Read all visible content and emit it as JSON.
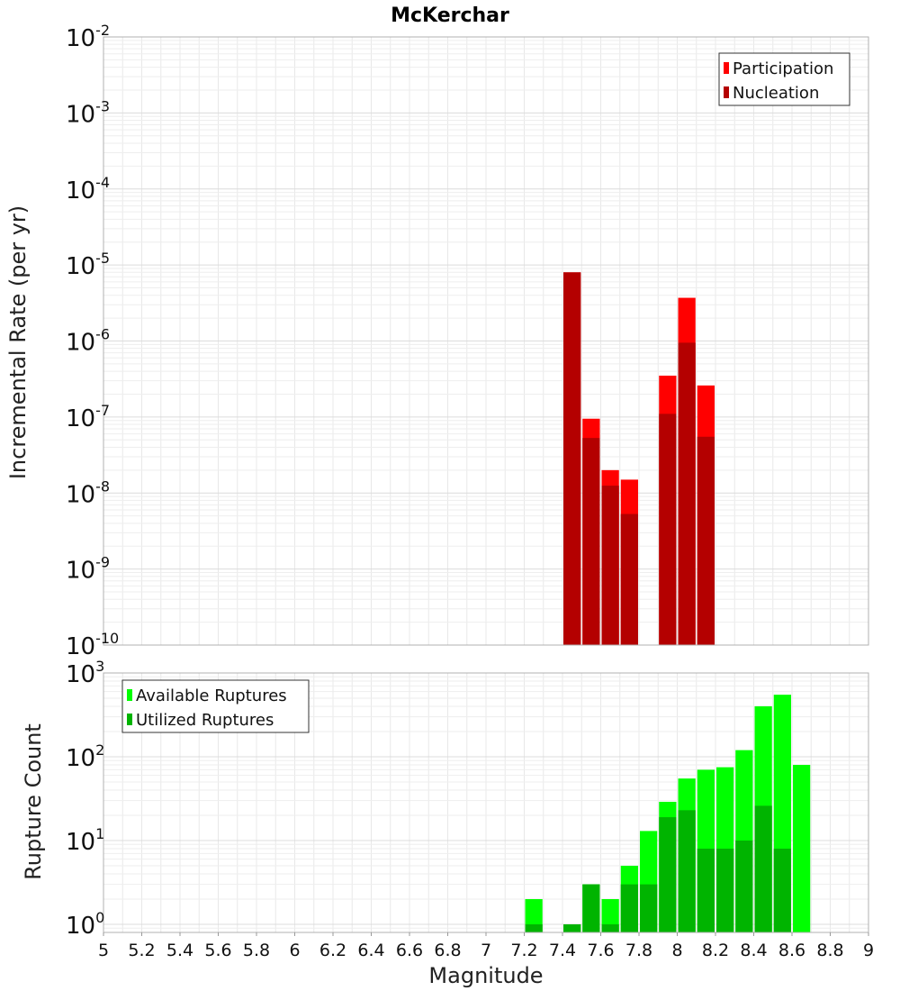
{
  "title": "McKerchar",
  "chart_data": [
    {
      "type": "bar",
      "ylabel": "Incremental Rate (per yr)",
      "yscale": "log",
      "ylim": [
        1e-10,
        0.01
      ],
      "xlim": [
        5,
        9
      ],
      "y_ticks": [
        {
          "base": "10",
          "exp": "-10"
        },
        {
          "base": "10",
          "exp": "-9"
        },
        {
          "base": "10",
          "exp": "-8"
        },
        {
          "base": "10",
          "exp": "-7"
        },
        {
          "base": "10",
          "exp": "-6"
        },
        {
          "base": "10",
          "exp": "-5"
        },
        {
          "base": "10",
          "exp": "-4"
        },
        {
          "base": "10",
          "exp": "-3"
        },
        {
          "base": "10",
          "exp": "-2"
        }
      ],
      "legend_position": "top-right",
      "grid": true,
      "bin_width": 0.1,
      "series": [
        {
          "name": "Participation",
          "color": "#ff0000",
          "x": [
            7.45,
            7.55,
            7.65,
            7.75,
            7.95,
            8.05,
            8.15
          ],
          "values": [
            8e-06,
            9.5e-08,
            2e-08,
            1.5e-08,
            3.5e-07,
            3.7e-06,
            2.6e-07
          ]
        },
        {
          "name": "Nucleation",
          "color": "#b40000",
          "x": [
            7.45,
            7.55,
            7.65,
            7.75,
            7.95,
            8.05,
            8.15
          ],
          "values": [
            8e-06,
            5.3e-08,
            1.25e-08,
            5.3e-09,
            1.1e-07,
            9.5e-07,
            5.5e-08
          ]
        }
      ]
    },
    {
      "type": "bar",
      "xlabel": "Magnitude",
      "ylabel": "Rupture Count",
      "yscale": "log",
      "ylim": [
        0.8,
        1000
      ],
      "xlim": [
        5,
        9
      ],
      "y_ticks": [
        {
          "base": "10",
          "exp": "0"
        },
        {
          "base": "10",
          "exp": "1"
        },
        {
          "base": "10",
          "exp": "2"
        },
        {
          "base": "10",
          "exp": "3"
        }
      ],
      "x_ticks": [
        "5",
        "5.2",
        "5.4",
        "5.6",
        "5.8",
        "6",
        "6.2",
        "6.4",
        "6.6",
        "6.8",
        "7",
        "7.2",
        "7.4",
        "7.6",
        "7.8",
        "8",
        "8.2",
        "8.4",
        "8.6",
        "8.8",
        "9"
      ],
      "legend_position": "top-left",
      "grid": true,
      "bin_width": 0.1,
      "series": [
        {
          "name": "Available Ruptures",
          "color": "#00ff00",
          "x": [
            7.25,
            7.45,
            7.55,
            7.65,
            7.75,
            7.85,
            7.95,
            8.05,
            8.15,
            8.25,
            8.35,
            8.45,
            8.55,
            8.65
          ],
          "values": [
            2,
            1,
            3,
            2,
            5,
            13,
            29,
            55,
            70,
            75,
            120,
            400,
            550,
            80
          ]
        },
        {
          "name": "Utilized Ruptures",
          "color": "#00b400",
          "x": [
            7.25,
            7.45,
            7.55,
            7.65,
            7.75,
            7.85,
            7.95,
            8.05,
            8.15,
            8.25,
            8.35,
            8.45,
            8.55
          ],
          "values": [
            1,
            1,
            3,
            1,
            3,
            3,
            19,
            23,
            8,
            8,
            10,
            26,
            8
          ]
        }
      ]
    }
  ]
}
